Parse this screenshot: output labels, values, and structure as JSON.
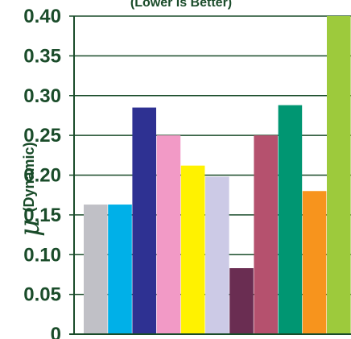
{
  "chart_data": {
    "type": "bar",
    "title": "(Lower is Better)",
    "ylabel_symbol": "𝜇",
    "ylabel_text": "(Dynamic)",
    "xlabel": "",
    "ylim": [
      0,
      0.4
    ],
    "yticks": [
      "0",
      "0.05",
      "0.10",
      "0.15",
      "0.20",
      "0.25",
      "0.30",
      "0.35",
      "0.40"
    ],
    "ytick_values": [
      0,
      0.05,
      0.1,
      0.15,
      0.2,
      0.25,
      0.3,
      0.35,
      0.4
    ],
    "grid": true,
    "legend": false,
    "values": [
      0.163,
      0.163,
      0.285,
      0.25,
      0.212,
      0.198,
      0.083,
      0.25,
      0.288,
      0.18,
      0.4
    ],
    "colors": [
      "#c0c0c6",
      "#00b0e8",
      "#2e3192",
      "#f29ac6",
      "#fff200",
      "#cccae6",
      "#6a2d52",
      "#b5516e",
      "#009672",
      "#f7941d",
      "#9dca3c"
    ],
    "axis_color": "#1a4c2a"
  }
}
